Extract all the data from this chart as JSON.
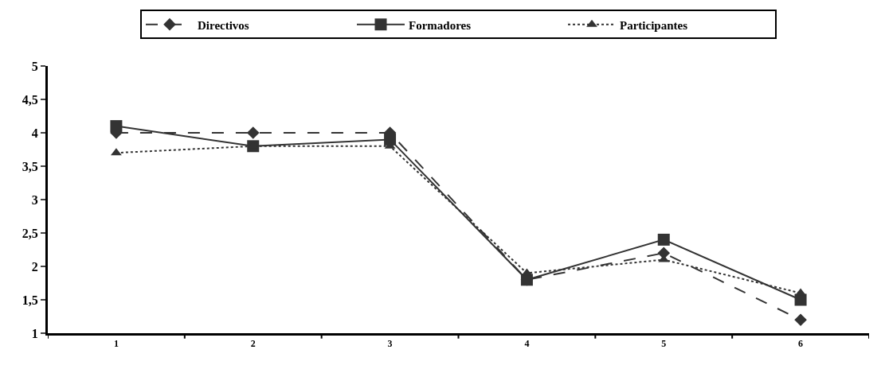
{
  "chart_data": {
    "type": "line",
    "categories": [
      "1",
      "2",
      "3",
      "4",
      "5",
      "6"
    ],
    "series": [
      {
        "name": "Directivos",
        "color": "#333333",
        "marker": "diamond",
        "line_style": "dashed",
        "values": [
          4,
          4,
          4,
          1.8,
          2.2,
          1.2
        ]
      },
      {
        "name": "Formadores",
        "color": "#333333",
        "marker": "square",
        "line_style": "solid",
        "values": [
          4.1,
          3.8,
          3.9,
          1.8,
          2.4,
          1.5
        ]
      },
      {
        "name": "Participantes",
        "color": "#333333",
        "marker": "triangle",
        "line_style": "dotted",
        "values": [
          3.7,
          3.8,
          3.8,
          1.9,
          2.1,
          1.6
        ]
      }
    ],
    "ylim": [
      1,
      5
    ],
    "yticks": [
      1,
      {
        "value": 1.5,
        "label": "1,5"
      },
      2,
      {
        "value": 2.5,
        "label": "2,5"
      },
      3,
      {
        "value": 3.5,
        "label": "3,5"
      },
      4,
      {
        "value": 4.5,
        "label": "4,5"
      },
      5
    ],
    "legend": "top"
  }
}
